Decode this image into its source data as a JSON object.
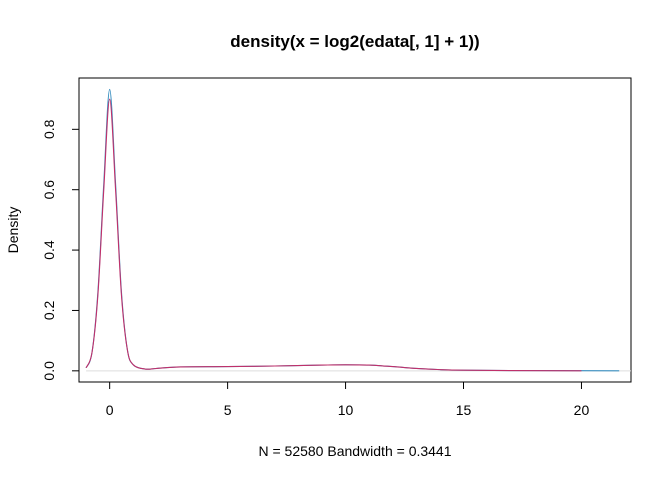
{
  "chart_data": {
    "type": "line",
    "title": "density(x = log2(edata[, 1] + 1))",
    "xlabel": "N = 52580   Bandwidth = 0.3441",
    "ylabel": "Density",
    "xlim": [
      -1.3,
      22.1
    ],
    "ylim": [
      -0.037,
      0.97
    ],
    "x_ticks": [
      0,
      5,
      10,
      15,
      20
    ],
    "x_tick_labels": [
      "0",
      "5",
      "10",
      "15",
      "20"
    ],
    "y_ticks": [
      0.0,
      0.2,
      0.4,
      0.6,
      0.8
    ],
    "y_tick_labels": [
      "0.0",
      "0.2",
      "0.4",
      "0.6",
      "0.8"
    ],
    "grid": false,
    "series": [
      {
        "color": "#3a8fc0",
        "points": [
          [
            -1.0,
            0.01
          ],
          [
            -0.75,
            0.06
          ],
          [
            -0.5,
            0.26
          ],
          [
            -0.25,
            0.62
          ],
          [
            0.0,
            0.932
          ],
          [
            0.25,
            0.62
          ],
          [
            0.5,
            0.26
          ],
          [
            0.75,
            0.07
          ],
          [
            1.0,
            0.02
          ],
          [
            1.5,
            0.006
          ],
          [
            2.0,
            0.008
          ],
          [
            3.0,
            0.013
          ],
          [
            5.0,
            0.014
          ],
          [
            7.0,
            0.016
          ],
          [
            9.0,
            0.019
          ],
          [
            10.0,
            0.02
          ],
          [
            11.0,
            0.019
          ],
          [
            12.0,
            0.014
          ],
          [
            13.0,
            0.008
          ],
          [
            14.0,
            0.004
          ],
          [
            15.0,
            0.002
          ],
          [
            17.0,
            0.001
          ],
          [
            20.0,
            0.0005
          ],
          [
            21.6,
            0.0
          ]
        ]
      },
      {
        "color": "#c0306a",
        "points": [
          [
            -1.0,
            0.01
          ],
          [
            -0.75,
            0.06
          ],
          [
            -0.5,
            0.25
          ],
          [
            -0.25,
            0.6
          ],
          [
            0.0,
            0.9
          ],
          [
            0.25,
            0.6
          ],
          [
            0.5,
            0.25
          ],
          [
            0.75,
            0.07
          ],
          [
            1.0,
            0.02
          ],
          [
            1.5,
            0.006
          ],
          [
            2.0,
            0.008
          ],
          [
            3.0,
            0.013
          ],
          [
            5.0,
            0.014
          ],
          [
            7.0,
            0.016
          ],
          [
            9.0,
            0.019
          ],
          [
            10.0,
            0.02
          ],
          [
            11.0,
            0.019
          ],
          [
            12.0,
            0.014
          ],
          [
            13.0,
            0.008
          ],
          [
            14.0,
            0.004
          ],
          [
            15.0,
            0.002
          ],
          [
            17.0,
            0.001
          ],
          [
            20.0,
            0.0
          ]
        ]
      }
    ]
  }
}
